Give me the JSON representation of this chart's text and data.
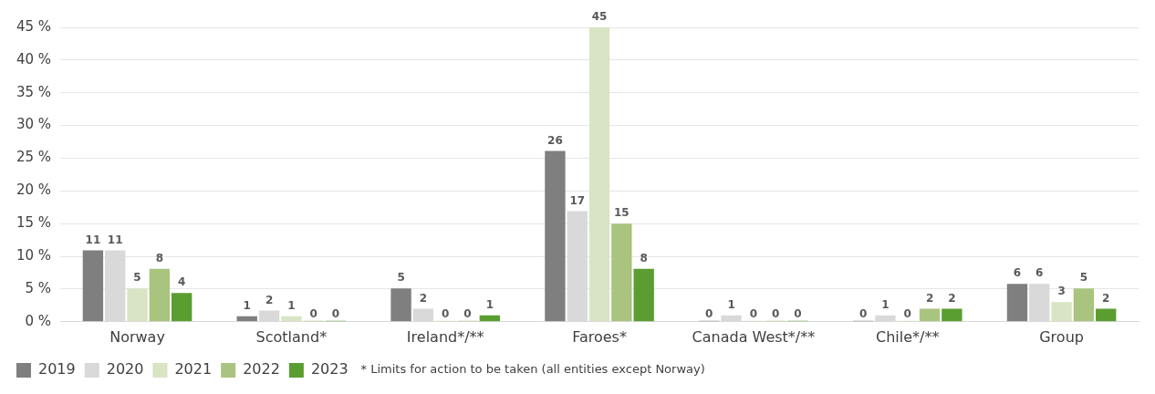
{
  "chart_data": {
    "type": "bar",
    "categories": [
      "Norway",
      "Scotland*",
      "Ireland*/**",
      "Faroes*",
      "Canada West*/**",
      "Chile*/**",
      "Group"
    ],
    "series": [
      {
        "name": "2019",
        "color": "#7f7f7f",
        "values": [
          10.9,
          0.85,
          5.1,
          26.1,
          0,
          0,
          5.8
        ],
        "value_labels": [
          "11",
          "1",
          "5",
          "26",
          "0",
          "0",
          "6"
        ]
      },
      {
        "name": "2020",
        "color": "#d9d9d9",
        "values": [
          10.9,
          1.7,
          2.0,
          16.9,
          1.0,
          1.0,
          5.8
        ],
        "value_labels": [
          "11",
          "2",
          "2",
          "17",
          "1",
          "1",
          "6"
        ]
      },
      {
        "name": "2021",
        "color": "#d8e4c3",
        "values": [
          5.1,
          0.85,
          0,
          45,
          0,
          0,
          3.0
        ],
        "value_labels": [
          "5",
          "1",
          "0",
          "45",
          "0",
          "0",
          "3"
        ]
      },
      {
        "name": "2022",
        "color": "#a9c47f",
        "values": [
          8.1,
          0,
          0,
          15.0,
          0,
          2.0,
          5.1
        ],
        "value_labels": [
          "8",
          "0",
          "0",
          "15",
          "0",
          "2",
          "5"
        ]
      },
      {
        "name": "2023",
        "color": "#5a9e32",
        "values": [
          4.4,
          0,
          1.0,
          8.1,
          0,
          2.0,
          2.0
        ],
        "value_labels": [
          "4",
          "0",
          "1",
          "8",
          "0",
          "2",
          "2"
        ]
      }
    ],
    "ylim": [
      0,
      45
    ],
    "yticks": [
      {
        "value": 0,
        "label": "0 %"
      },
      {
        "value": 5,
        "label": "5 %"
      },
      {
        "value": 10,
        "label": "10 %"
      },
      {
        "value": 15,
        "label": "15 %"
      },
      {
        "value": 20,
        "label": "20 %"
      },
      {
        "value": 25,
        "label": "25 %"
      },
      {
        "value": 30,
        "label": "30 %"
      },
      {
        "value": 35,
        "label": "35 %"
      },
      {
        "value": 40,
        "label": "40 %"
      },
      {
        "value": 45,
        "label": "45 %"
      }
    ],
    "grid": "y",
    "legend": "bottom left",
    "annotations": [
      "* Limits for action to be taken (all entities except Norway)"
    ]
  }
}
